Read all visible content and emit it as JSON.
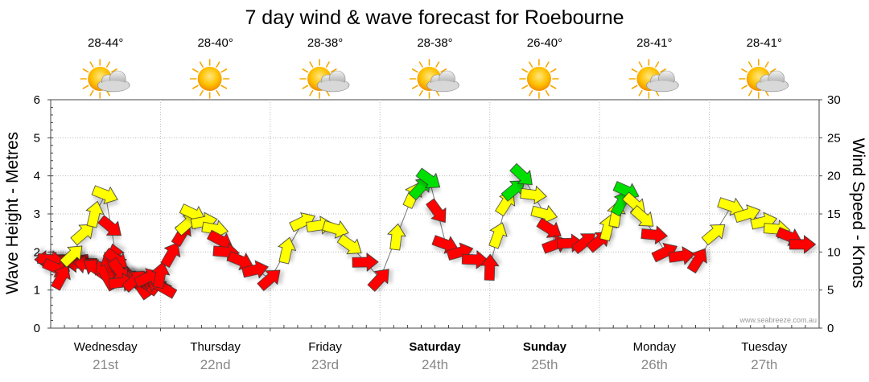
{
  "chart_data": {
    "type": "line",
    "title": "7 day wind & wave forecast for Roebourne",
    "ylabel_left": "Wave Height - Metres",
    "ylabel_right": "Wind Speed - Knots",
    "ylim_left": [
      0,
      6
    ],
    "ylim_right": [
      0,
      30
    ],
    "yticks_left": [
      "0",
      "1",
      "2",
      "3",
      "4",
      "5",
      "6"
    ],
    "yticks_right": [
      "0",
      "5",
      "10",
      "15",
      "20",
      "25",
      "30"
    ],
    "grid": true,
    "watermark": "www.seabreeze.com.au",
    "days": [
      {
        "name": "Wednesday",
        "date": "21st",
        "temp": "28-44°",
        "weather_icon": "partly-cloudy-icon",
        "bold": false
      },
      {
        "name": "Thursday",
        "date": "22nd",
        "temp": "28-40°",
        "weather_icon": "sunny-icon",
        "bold": false
      },
      {
        "name": "Friday",
        "date": "23rd",
        "temp": "28-38°",
        "weather_icon": "partly-cloudy-icon",
        "bold": false
      },
      {
        "name": "Saturday",
        "date": "24th",
        "temp": "28-38°",
        "weather_icon": "partly-cloudy-icon",
        "bold": true
      },
      {
        "name": "Sunday",
        "date": "25th",
        "temp": "26-40°",
        "weather_icon": "sunny-icon",
        "bold": true
      },
      {
        "name": "Monday",
        "date": "26th",
        "temp": "28-41°",
        "weather_icon": "partly-cloudy-icon",
        "bold": false
      },
      {
        "name": "Tuesday",
        "date": "27th",
        "temp": "28-41°",
        "weather_icon": "partly-cloudy-icon",
        "bold": false
      }
    ],
    "colors": {
      "red": "#ff0000",
      "yellow": "#ffff00",
      "green": "#00e000"
    },
    "series": [
      {
        "name": "Wind Speed - Knots",
        "unit": "kn",
        "points": [
          {
            "t": 0.0,
            "v": 9.0,
            "dir": 180,
            "color": "red"
          },
          {
            "t": 0.2,
            "v": 8.7,
            "dir": 170,
            "color": "red"
          },
          {
            "t": 0.35,
            "v": 8.3,
            "dir": 190,
            "color": "red"
          },
          {
            "t": 0.5,
            "v": 7.0,
            "dir": 240,
            "color": "red"
          },
          {
            "t": 0.6,
            "v": 9.0,
            "dir": 255,
            "color": "red"
          },
          {
            "t": 0.72,
            "v": 6.5,
            "dir": 200,
            "color": "red"
          },
          {
            "t": 0.8,
            "v": 5.8,
            "dir": 235,
            "color": "red"
          },
          {
            "t": 0.9,
            "v": 6.2,
            "dir": 200,
            "color": "red"
          },
          {
            "t": 1.0,
            "v": 5.5,
            "dir": 210,
            "color": "red"
          }
        ]
      },
      {
        "name": "Wave Height - Metres",
        "unit": "m",
        "points": [
          {
            "t": 0.0,
            "v": 1.8,
            "color": "red"
          },
          {
            "t": 0.1,
            "v": 1.35,
            "color": "red"
          },
          {
            "t": 0.3,
            "v": 2.5,
            "color": "yellow"
          },
          {
            "t": 0.5,
            "v": 3.5,
            "color": "yellow"
          },
          {
            "t": 0.6,
            "v": 1.8,
            "color": "red"
          },
          {
            "t": 0.65,
            "v": 1.2,
            "color": "red"
          },
          {
            "t": 1.0,
            "v": 1.4,
            "color": "red"
          },
          {
            "t": 1.2,
            "v": 2.5,
            "color": "red"
          },
          {
            "t": 1.3,
            "v": 3.0,
            "color": "yellow"
          },
          {
            "t": 1.5,
            "v": 2.6,
            "color": "yellow"
          },
          {
            "t": 1.6,
            "v": 2.0,
            "color": "red"
          },
          {
            "t": 2.0,
            "v": 1.3,
            "color": "red"
          },
          {
            "t": 2.3,
            "v": 2.8,
            "color": "yellow"
          },
          {
            "t": 2.6,
            "v": 2.6,
            "color": "yellow"
          },
          {
            "t": 3.0,
            "v": 1.3,
            "color": "red"
          },
          {
            "t": 3.3,
            "v": 3.5,
            "color": "yellow"
          },
          {
            "t": 3.45,
            "v": 3.9,
            "color": "green"
          },
          {
            "t": 3.6,
            "v": 2.2,
            "color": "red"
          },
          {
            "t": 4.0,
            "v": 1.6,
            "color": "red"
          },
          {
            "t": 4.15,
            "v": 3.3,
            "color": "yellow"
          },
          {
            "t": 4.3,
            "v": 4.0,
            "color": "green"
          },
          {
            "t": 4.5,
            "v": 3.0,
            "color": "yellow"
          },
          {
            "t": 4.6,
            "v": 2.2,
            "color": "red"
          },
          {
            "t": 5.0,
            "v": 2.3,
            "color": "red"
          },
          {
            "t": 5.15,
            "v": 3.0,
            "color": "yellow"
          },
          {
            "t": 5.25,
            "v": 3.6,
            "color": "green"
          },
          {
            "t": 5.4,
            "v": 2.9,
            "color": "yellow"
          },
          {
            "t": 5.6,
            "v": 2.0,
            "color": "red"
          },
          {
            "t": 5.9,
            "v": 1.8,
            "color": "red"
          },
          {
            "t": 6.2,
            "v": 3.2,
            "color": "yellow"
          },
          {
            "t": 6.5,
            "v": 2.8,
            "color": "yellow"
          },
          {
            "t": 6.85,
            "v": 2.2,
            "color": "red"
          }
        ]
      }
    ]
  }
}
